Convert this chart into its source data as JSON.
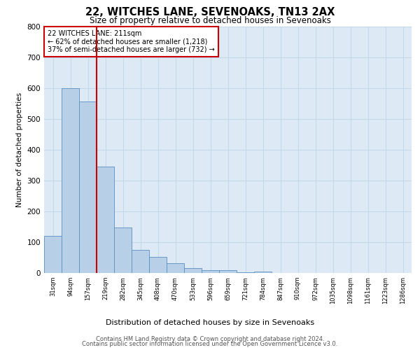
{
  "title1": "22, WITCHES LANE, SEVENOAKS, TN13 2AX",
  "title2": "Size of property relative to detached houses in Sevenoaks",
  "xlabel": "Distribution of detached houses by size in Sevenoaks",
  "ylabel": "Number of detached properties",
  "footer1": "Contains HM Land Registry data © Crown copyright and database right 2024.",
  "footer2": "Contains public sector information licensed under the Open Government Licence v3.0.",
  "annotation_line1": "22 WITCHES LANE: 211sqm",
  "annotation_line2": "← 62% of detached houses are smaller (1,218)",
  "annotation_line3": "37% of semi-detached houses are larger (732) →",
  "bar_labels": [
    "31sqm",
    "94sqm",
    "157sqm",
    "219sqm",
    "282sqm",
    "345sqm",
    "408sqm",
    "470sqm",
    "533sqm",
    "596sqm",
    "659sqm",
    "721sqm",
    "784sqm",
    "847sqm",
    "910sqm",
    "972sqm",
    "1035sqm",
    "1098sqm",
    "1161sqm",
    "1223sqm",
    "1286sqm"
  ],
  "bar_values": [
    120,
    600,
    555,
    345,
    148,
    75,
    53,
    32,
    15,
    10,
    10,
    3,
    5,
    0,
    0,
    0,
    0,
    0,
    0,
    0,
    0
  ],
  "bar_color": "#b8cfe8",
  "bar_edge_color": "#5a8fc0",
  "grid_color": "#c5d8ea",
  "bg_color": "#ddeaf5",
  "property_line_color": "#cc0000",
  "annotation_box_color": "#cc0000",
  "ylim": [
    0,
    800
  ],
  "yticks": [
    0,
    100,
    200,
    300,
    400,
    500,
    600,
    700,
    800
  ]
}
